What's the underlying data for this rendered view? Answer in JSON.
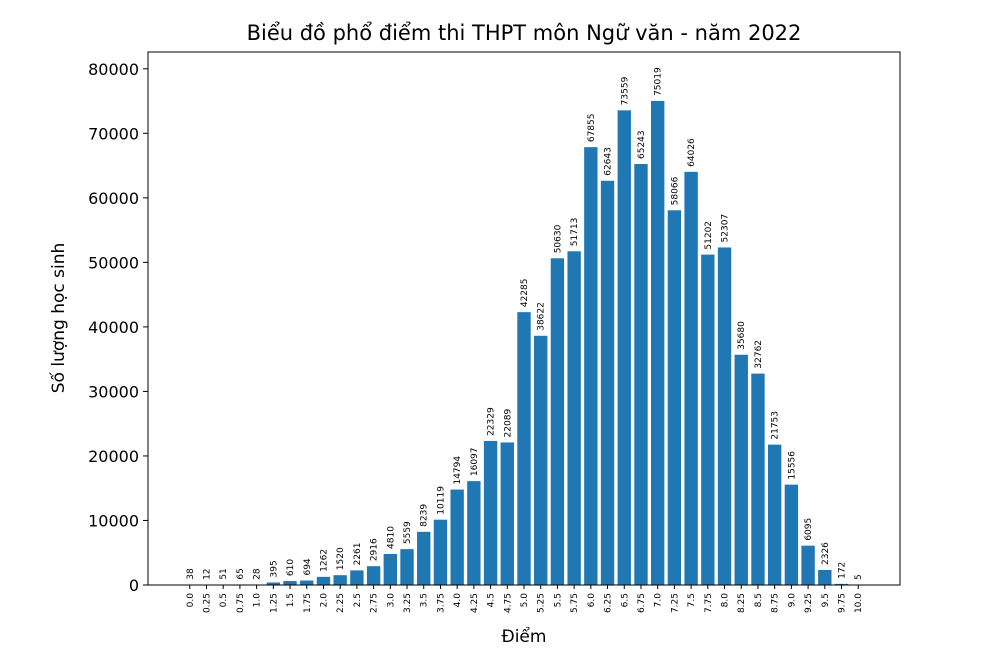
{
  "chart_data": {
    "type": "bar",
    "title": "Biểu đồ phổ điểm thi THPT môn Ngữ văn - năm 2022",
    "x_label": "Điểm",
    "y_label": "Số lượng học sinh",
    "categories": [
      "0.0",
      "0.25",
      "0.5",
      "0.75",
      "1.0",
      "1.25",
      "1.5",
      "1.75",
      "2.0",
      "2.25",
      "2.5",
      "2.75",
      "3.0",
      "3.25",
      "3.5",
      "3.75",
      "4.0",
      "4.25",
      "4.5",
      "4.75",
      "5.0",
      "5.25",
      "5.5",
      "5.75",
      "6.0",
      "6.25",
      "6.5",
      "6.75",
      "7.0",
      "7.25",
      "7.5",
      "7.75",
      "8.0",
      "8.25",
      "8.5",
      "8.75",
      "9.0",
      "9.25",
      "9.5",
      "9.75",
      "10.0"
    ],
    "values": [
      38,
      12,
      51,
      65,
      28,
      395,
      610,
      694,
      1262,
      1520,
      2261,
      2916,
      4810,
      5559,
      8239,
      10119,
      14794,
      16097,
      22329,
      22089,
      42285,
      38622,
      50630,
      51713,
      67855,
      62643,
      73559,
      65243,
      75019,
      58066,
      64026,
      51202,
      52307,
      35680,
      32762,
      21753,
      15556,
      6095,
      2326,
      172,
      5
    ],
    "color": "#1f77b4",
    "ylim": [
      0,
      82600
    ],
    "yticks": [
      0,
      10000,
      20000,
      30000,
      40000,
      50000,
      60000,
      70000,
      80000
    ]
  }
}
